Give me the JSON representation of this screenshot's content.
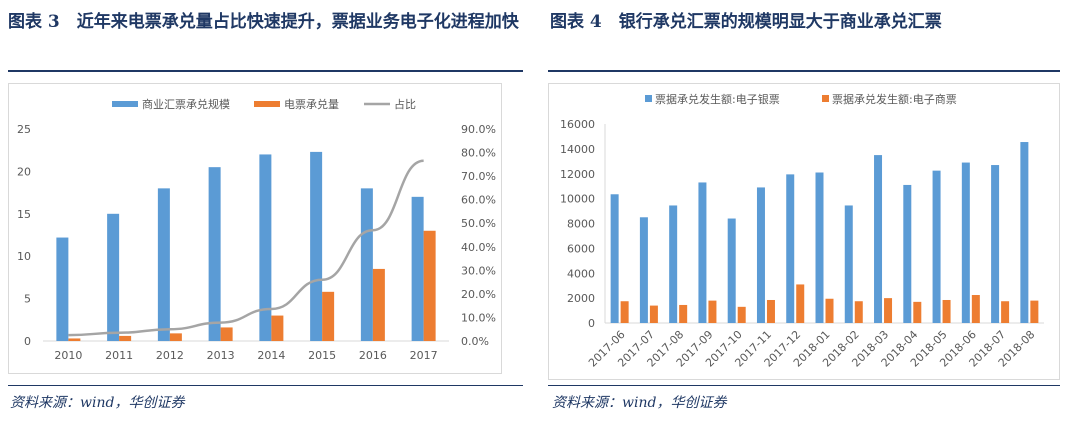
{
  "left": {
    "title": "图表 3　近年来电票承兑量占比快速提升，票据业务电子化进程加快",
    "source": "资料来源：wind，华创证券"
  },
  "right": {
    "title": "图表 4　银行承兑汇票的规模明显大于商业承兑汇票",
    "source": "资料来源：wind，华创证券"
  },
  "chart_data": [
    {
      "type": "bar",
      "categories": [
        "2010",
        "2011",
        "2012",
        "2013",
        "2014",
        "2015",
        "2016",
        "2017"
      ],
      "series": [
        {
          "name": "商业汇票承兑规模",
          "axis": "left",
          "color": "#5b9bd5",
          "values": [
            12.2,
            15,
            18,
            20.5,
            22,
            22.3,
            18,
            17
          ]
        },
        {
          "name": "电票承兑量",
          "axis": "left",
          "color": "#ed7d31",
          "values": [
            0.3,
            0.6,
            0.9,
            1.6,
            3.0,
            5.8,
            8.5,
            13
          ]
        },
        {
          "name": "占比",
          "type": "line",
          "axis": "right",
          "color": "#a5a5a5",
          "values": [
            2.5,
            3.5,
            5.0,
            7.8,
            13.6,
            26,
            47,
            76.5
          ]
        }
      ],
      "ylim": [
        0,
        25
      ],
      "yticks": [
        "0",
        "5",
        "10",
        "15",
        "20",
        "25"
      ],
      "y2lim": [
        0,
        90
      ],
      "y2ticks": [
        "0.0%",
        "10.0%",
        "20.0%",
        "30.0%",
        "40.0%",
        "50.0%",
        "60.0%",
        "70.0%",
        "80.0%",
        "90.0%"
      ],
      "legend": "top",
      "grid": false
    },
    {
      "type": "bar",
      "categories": [
        "2017-06",
        "2017-07",
        "2017-08",
        "2017-09",
        "2017-10",
        "2017-11",
        "2017-12",
        "2018-01",
        "2018-02",
        "2018-03",
        "2018-04",
        "2018-05",
        "2018-06",
        "2018-07",
        "2018-08"
      ],
      "series": [
        {
          "name": "票据承兑发生额:电子银票",
          "color": "#5b9bd5",
          "values": [
            10350,
            8500,
            9450,
            11300,
            8400,
            10900,
            11950,
            12100,
            9450,
            13500,
            11100,
            12250,
            12900,
            12700,
            14550
          ]
        },
        {
          "name": "票据承兑发生额:电子商票",
          "color": "#ed7d31",
          "values": [
            1750,
            1400,
            1450,
            1800,
            1300,
            1850,
            3100,
            1950,
            1750,
            2000,
            1700,
            1850,
            2250,
            1750,
            1800
          ]
        }
      ],
      "ylim": [
        0,
        16000
      ],
      "yticks": [
        "0",
        "2000",
        "4000",
        "6000",
        "8000",
        "10000",
        "12000",
        "14000",
        "16000"
      ],
      "legend": "top",
      "grid": false
    }
  ]
}
